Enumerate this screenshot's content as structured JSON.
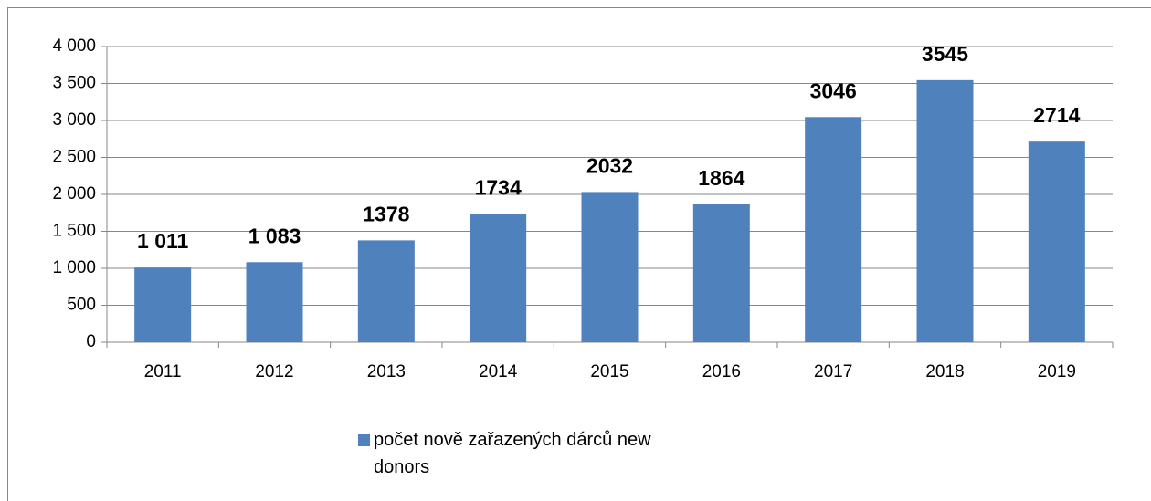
{
  "chart_data": {
    "type": "bar",
    "categories": [
      "2011",
      "2012",
      "2013",
      "2014",
      "2015",
      "2016",
      "2017",
      "2018",
      "2019"
    ],
    "series": [
      {
        "name": "počet nově zařazených dárců new donors",
        "color": "#4f81bd",
        "values": [
          1011,
          1083,
          1378,
          1734,
          2032,
          1864,
          3046,
          3545,
          2714
        ],
        "value_labels": [
          "1 011",
          "1 083",
          "1378",
          "1734",
          "2032",
          "1864",
          "3046",
          "3545",
          "2714"
        ]
      }
    ],
    "ylim": [
      0,
      4000
    ],
    "yticks": [
      0,
      500,
      {
        "value": 1000,
        "label": "1 000"
      },
      {
        "value": 1500,
        "label": "1 500"
      },
      {
        "value": 2000,
        "label": "2 000"
      },
      {
        "value": 2500,
        "label": "2 500"
      },
      {
        "value": 3000,
        "label": "3 000"
      },
      {
        "value": 3500,
        "label": "3 500"
      },
      {
        "value": 4000,
        "label": "4 000"
      }
    ],
    "grid": true,
    "legend": "bottom"
  }
}
